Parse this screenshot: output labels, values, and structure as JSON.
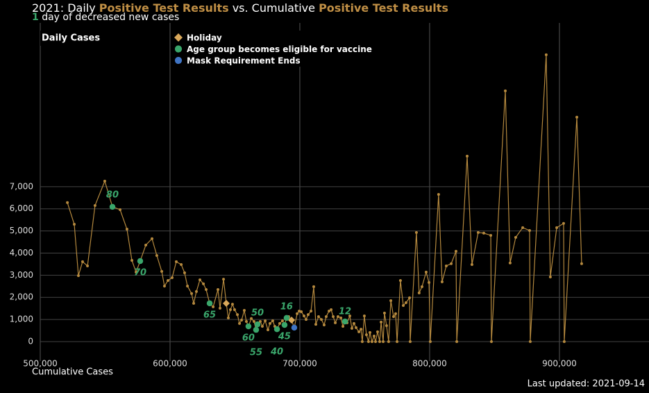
{
  "chart_data": {
    "type": "line",
    "title": [
      {
        "text": "2021: Daily ",
        "color": "#ffffff"
      },
      {
        "text": "Positive Test Results",
        "color": "#c08f45"
      },
      {
        "text": " vs. Cumulative ",
        "color": "#ffffff"
      },
      {
        "text": "Positive Test Results",
        "color": "#c08f45"
      }
    ],
    "subtitle": [
      {
        "text": "1",
        "color": "#3aa66b"
      },
      {
        "text": " day of decreased new cases",
        "color": "#ffffff"
      }
    ],
    "x_label": "Cumulative Cases",
    "y_label": "Daily Cases",
    "footer": "Last updated: 2021-09-14",
    "grid": true,
    "xlim": [
      500000,
      969000
    ],
    "ylim": [
      -880,
      14400
    ],
    "xticks": [
      {
        "value": 500000,
        "label": "500,000"
      },
      {
        "value": 600000,
        "label": "600,000"
      },
      {
        "value": 700000,
        "label": "700,000"
      },
      {
        "value": 800000,
        "label": "800,000"
      },
      {
        "value": 900000,
        "label": "900,000"
      }
    ],
    "yticks": [
      0,
      {
        "value": 1000,
        "label": "1,000"
      },
      {
        "value": 2000,
        "label": "2,000"
      },
      {
        "value": 3000,
        "label": "3,000"
      },
      {
        "value": 4000,
        "label": "4,000"
      },
      {
        "value": 5000,
        "label": "5,000"
      },
      {
        "value": 6000,
        "label": "6,000"
      },
      {
        "value": 7000,
        "label": "7,000"
      }
    ],
    "series": [
      {
        "name": "Daily Cases",
        "color": "#b5893e",
        "x": [
          520900,
          526200,
          529400,
          532600,
          536400,
          542200,
          549700,
          555600,
          561500,
          566800,
          570600,
          573800,
          577000,
          581300,
          586100,
          589800,
          593600,
          595700,
          598400,
          601600,
          604800,
          608600,
          611200,
          613400,
          616600,
          618200,
          620300,
          623000,
          625700,
          627800,
          630500,
          633200,
          636900,
          638500,
          641200,
          643300,
          644900,
          646500,
          648100,
          649700,
          651900,
          653500,
          655100,
          657200,
          658800,
          660400,
          662600,
          664700,
          666300,
          667400,
          669500,
          671100,
          673300,
          675400,
          677000,
          679100,
          680700,
          682400,
          684500,
          686600,
          688200,
          689800,
          691400,
          693600,
          695700,
          697900,
          699500,
          701100,
          703200,
          704800,
          706400,
          708600,
          710700,
          712300,
          714400,
          716600,
          718700,
          720300,
          722500,
          724100,
          725700,
          727300,
          729400,
          731600,
          733200,
          734800,
          736400,
          738500,
          740100,
          741700,
          743300,
          745500,
          747100,
          748100,
          749700,
          751300,
          752900,
          754000,
          755600,
          757200,
          758300,
          759900,
          761500,
          762600,
          764200,
          765200,
          766800,
          768400,
          770100,
          772200,
          773800,
          774900,
          777500,
          779700,
          781800,
          784500,
          785000,
          789800,
          791900,
          794100,
          797300,
          799500,
          800500,
          806900,
          809600,
          812800,
          816600,
          820300,
          820900,
          828900,
          832600,
          837400,
          841700,
          847100,
          847600,
          858300,
          862000,
          866300,
          871700,
          877000,
          877500,
          889800,
          893000,
          897900,
          903200,
          903700,
          913400,
          917100
        ],
        "values": [
          6280,
          5300,
          2980,
          3610,
          3420,
          6150,
          7250,
          6090,
          5960,
          5080,
          3670,
          3140,
          3640,
          4360,
          4650,
          3890,
          3170,
          2510,
          2760,
          2890,
          3610,
          3480,
          3110,
          2510,
          2170,
          1730,
          2260,
          2790,
          2610,
          2350,
          1730,
          1570,
          2350,
          1510,
          2820,
          1730,
          1070,
          1440,
          1690,
          1440,
          1220,
          820,
          970,
          1410,
          910,
          690,
          1040,
          910,
          530,
          780,
          910,
          690,
          940,
          530,
          820,
          940,
          690,
          560,
          820,
          940,
          750,
          1070,
          1130,
          970,
          630,
          1260,
          1380,
          1350,
          1160,
          1000,
          1220,
          1380,
          2480,
          780,
          1130,
          1000,
          750,
          1130,
          1380,
          1440,
          1130,
          850,
          1130,
          1070,
          690,
          910,
          850,
          1160,
          600,
          820,
          630,
          440,
          560,
          0,
          1160,
          310,
          0,
          410,
          0,
          250,
          0,
          440,
          0,
          880,
          0,
          1290,
          720,
          0,
          1850,
          1130,
          1260,
          0,
          2760,
          1630,
          1760,
          1980,
          0,
          4930,
          2200,
          2480,
          3140,
          2670,
          0,
          6650,
          2700,
          3420,
          3520,
          4080,
          0,
          8380,
          3480,
          4930,
          4900,
          4800,
          0,
          11330,
          3550,
          4710,
          5150,
          5020,
          0,
          12960,
          2920,
          5150,
          5340,
          0,
          10140,
          3520
        ]
      }
    ],
    "events": [
      {
        "name": "Holiday",
        "marker": "diamond",
        "color": "#d9a85a",
        "x": [
          643300,
          693600
        ],
        "values": [
          1730,
          970
        ]
      },
      {
        "name": "Age group becomes eligible for vaccine",
        "marker": "circle",
        "color": "#3aa66b",
        "x": [
          555600,
          577000,
          630500,
          660400,
          666300,
          667400,
          688200,
          682400,
          689800,
          734800
        ],
        "values": [
          6090,
          3640,
          1730,
          690,
          530,
          780,
          750,
          560,
          1070,
          910
        ],
        "labels": [
          80,
          70,
          65,
          60,
          55,
          50,
          45,
          40,
          16,
          12
        ]
      },
      {
        "name": "Mask Requirement Ends",
        "marker": "circle",
        "color": "#3f74c4",
        "x": [
          695700
        ],
        "values": [
          630
        ]
      }
    ]
  }
}
